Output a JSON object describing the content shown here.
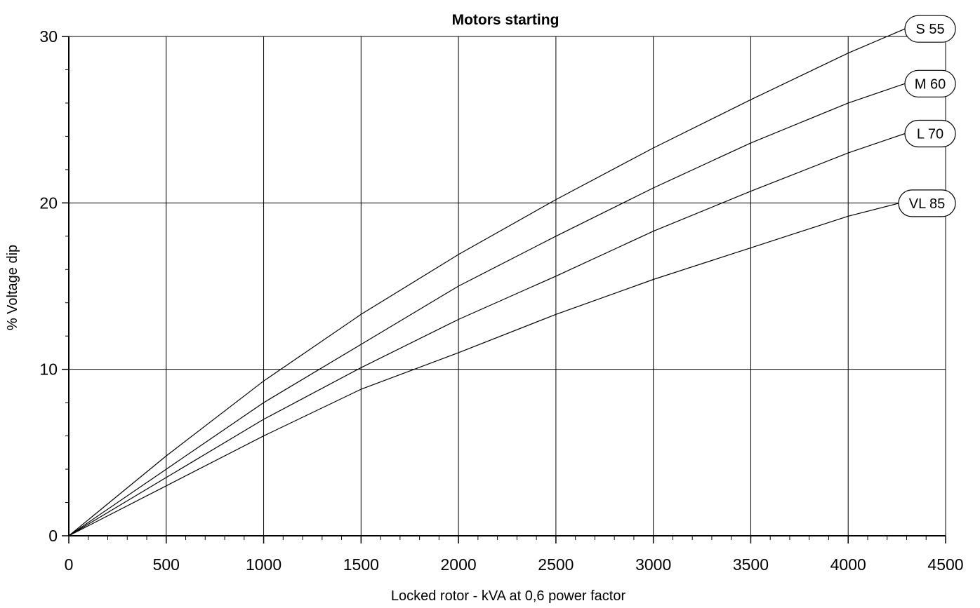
{
  "chart_data": {
    "type": "line",
    "title": "Motors starting",
    "xlabel": "Locked rotor - kVA at 0,6 power factor",
    "ylabel": "% Voltage dip",
    "xlim": [
      0,
      4500
    ],
    "ylim": [
      0,
      30
    ],
    "x_major_ticks": [
      0,
      500,
      1000,
      1500,
      2000,
      2500,
      3000,
      3500,
      4000,
      4500
    ],
    "y_major_ticks": [
      0,
      10,
      20,
      30
    ],
    "x_tick_labels": [
      "0",
      "500",
      "1000",
      "1500",
      "2000",
      "2500",
      "3000",
      "3500",
      "4000",
      "4500"
    ],
    "y_tick_labels": [
      "0",
      "10",
      "20",
      "30"
    ],
    "x_minor_step": 100,
    "y_minor_step": 2,
    "grid": true,
    "legend": "series labels at line ends (right)",
    "line_color": "#000000",
    "series": [
      {
        "name": "S 55",
        "x": [
          0,
          500,
          1000,
          1500,
          2000,
          2500,
          3000,
          3500,
          4000,
          4500
        ],
        "values": [
          0,
          4.8,
          9.3,
          13.3,
          16.9,
          20.2,
          23.3,
          26.2,
          29.0,
          31.5
        ]
      },
      {
        "name": "M 60",
        "x": [
          0,
          500,
          1000,
          1500,
          2000,
          2500,
          3000,
          3500,
          4000,
          4500
        ],
        "values": [
          0,
          4.0,
          8.0,
          11.5,
          15.0,
          18.0,
          20.9,
          23.6,
          26.0,
          28.0
        ]
      },
      {
        "name": "L 70",
        "x": [
          0,
          500,
          1000,
          1500,
          2000,
          2500,
          3000,
          3500,
          4000,
          4500
        ],
        "values": [
          0,
          3.5,
          7.0,
          10.1,
          13.0,
          15.6,
          18.3,
          20.7,
          23.0,
          25.0
        ]
      },
      {
        "name": "VL 85",
        "x": [
          0,
          500,
          1000,
          1500,
          2000,
          2500,
          3000,
          3500,
          4000,
          4500
        ],
        "values": [
          0,
          3.0,
          6.0,
          8.8,
          11.0,
          13.3,
          15.4,
          17.3,
          19.2,
          20.7
        ]
      }
    ]
  }
}
